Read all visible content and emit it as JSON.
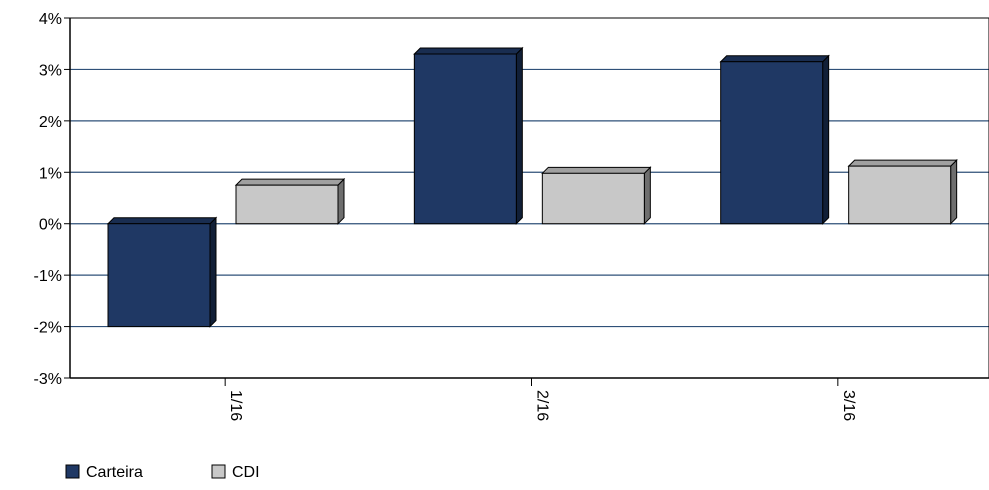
{
  "chart_data": {
    "type": "bar",
    "title": "",
    "xlabel": "",
    "ylabel": "",
    "categories": [
      "1/16",
      "2/16",
      "3/16"
    ],
    "series": [
      {
        "name": "Carteira",
        "values": [
          -2.0,
          3.3,
          3.15
        ],
        "color": "#1f3864"
      },
      {
        "name": "CDI",
        "values": [
          0.75,
          0.98,
          1.12
        ],
        "color": "#c8c8c8"
      }
    ],
    "ylim": [
      -3,
      4
    ],
    "y_ticks": [
      "4%",
      "3%",
      "2%",
      "1%",
      "0%",
      "-1%",
      "-2%",
      "-3%"
    ],
    "grid": true,
    "legend_position": "bottom-left",
    "bar_style": "3d"
  }
}
